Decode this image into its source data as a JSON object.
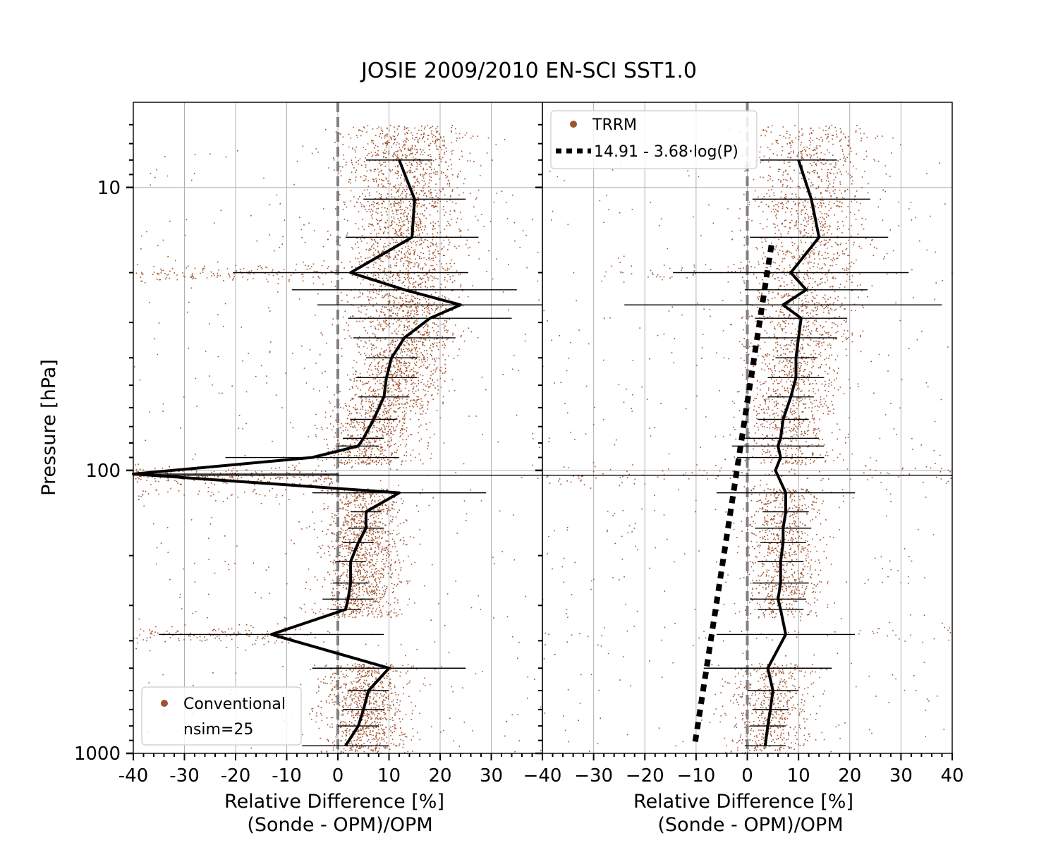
{
  "figure": {
    "title": "JOSIE 2009/2010 EN-SCI SST1.0",
    "ylabel": "Pressure [hPa]"
  },
  "colors": {
    "scatter": "#a0522d",
    "mean_line": "#000000",
    "zero_line": "#808080",
    "grid": "#b0b0b0"
  },
  "chart_data": [
    {
      "type": "scatter",
      "panel": "left",
      "xlabel": "Relative Difference [%]",
      "xlabel2": "(Sonde - OPM)/OPM",
      "xlim": [
        -40,
        40
      ],
      "ylim": [
        1000,
        5
      ],
      "yscale": "log",
      "x_ticks": [
        -40,
        -30,
        -20,
        -10,
        0,
        10,
        20,
        30
      ],
      "x_tick_labels": [
        "-40",
        "-30",
        "-20",
        "-10",
        "0",
        "10",
        "20",
        "30"
      ],
      "y_ticks": [
        10,
        100,
        1000
      ],
      "y_tick_labels": [
        "10",
        "100",
        "1000"
      ],
      "grid": true,
      "legend": {
        "placement": "lower-left",
        "entries": [
          {
            "label": "Conventional",
            "marker": "dot"
          },
          {
            "label": "nsim=25",
            "marker": "none"
          }
        ]
      },
      "series": [
        {
          "name": "Conventional",
          "kind": "scatter-cloud"
        },
        {
          "kind": "mean-profile",
          "points": [
            {
              "p": 8,
              "x": 12,
              "err": 6.5
            },
            {
              "p": 11,
              "x": 15,
              "err": 10
            },
            {
              "p": 15,
              "x": 14.5,
              "err": 13
            },
            {
              "p": 20,
              "x": 2.5,
              "err": 23
            },
            {
              "p": 23,
              "x": 13,
              "err": 22
            },
            {
              "p": 26,
              "x": 24,
              "err": 28
            },
            {
              "p": 29,
              "x": 18,
              "err": 16
            },
            {
              "p": 34,
              "x": 13,
              "err": 10
            },
            {
              "p": 40,
              "x": 10.5,
              "err": 5
            },
            {
              "p": 47,
              "x": 9.5,
              "err": 6
            },
            {
              "p": 55,
              "x": 9,
              "err": 5
            },
            {
              "p": 66,
              "x": 7,
              "err": 4.5
            },
            {
              "p": 77,
              "x": 5,
              "err": 4
            },
            {
              "p": 82,
              "x": 4,
              "err": 4
            },
            {
              "p": 90,
              "x": -5,
              "err": 17
            },
            {
              "p": 103,
              "x": -40,
              "err": 40
            },
            {
              "p": 120,
              "x": 12,
              "err": 17
            },
            {
              "p": 140,
              "x": 5.5,
              "err": 3
            },
            {
              "p": 160,
              "x": 5.5,
              "err": 3.5
            },
            {
              "p": 180,
              "x": 4,
              "err": 3
            },
            {
              "p": 210,
              "x": 2.5,
              "err": 3
            },
            {
              "p": 250,
              "x": 2.5,
              "err": 3.5
            },
            {
              "p": 285,
              "x": 2,
              "err": 5
            },
            {
              "p": 310,
              "x": 1.5,
              "err": 3
            },
            {
              "p": 380,
              "x": -13,
              "err": 22
            },
            {
              "p": 500,
              "x": 10,
              "err": 15
            },
            {
              "p": 600,
              "x": 6,
              "err": 4
            },
            {
              "p": 700,
              "x": 5,
              "err": 4
            },
            {
              "p": 800,
              "x": 4,
              "err": 4
            },
            {
              "p": 940,
              "x": 1.5,
              "err": 8.5
            }
          ]
        }
      ],
      "outlier_bar": {
        "p": 104
      }
    },
    {
      "type": "scatter",
      "panel": "right",
      "xlabel": "Relative Difference [%]",
      "xlabel2": "(Sonde - OPM)/OPM",
      "xlim": [
        -40,
        40
      ],
      "ylim": [
        1000,
        5
      ],
      "yscale": "log",
      "x_ticks": [
        -40,
        -30,
        -20,
        -10,
        0,
        10,
        20,
        30,
        40
      ],
      "x_tick_labels": [
        "−40",
        "−30",
        "−20",
        "−10",
        "0",
        "10",
        "20",
        "30",
        "40"
      ],
      "grid": true,
      "legend": {
        "placement": "top-left",
        "entries": [
          {
            "label": "TRRM",
            "marker": "dot"
          },
          {
            "label": "14.91 - 3.68·log(P)",
            "marker": "dashed"
          }
        ]
      },
      "series": [
        {
          "name": "TRRM",
          "kind": "scatter-cloud"
        },
        {
          "kind": "mean-profile",
          "points": [
            {
              "p": 8,
              "x": 10,
              "err": 7.5
            },
            {
              "p": 11,
              "x": 12.5,
              "err": 11.5
            },
            {
              "p": 15,
              "x": 14,
              "err": 13.5
            },
            {
              "p": 20,
              "x": 8.5,
              "err": 23
            },
            {
              "p": 23,
              "x": 11.5,
              "err": 12
            },
            {
              "p": 26,
              "x": 7,
              "err": 31
            },
            {
              "p": 29,
              "x": 10.5,
              "err": 9
            },
            {
              "p": 34,
              "x": 10,
              "err": 7.5
            },
            {
              "p": 40,
              "x": 9.5,
              "err": 4
            },
            {
              "p": 47,
              "x": 9.5,
              "err": 5.5
            },
            {
              "p": 55,
              "x": 8.5,
              "err": 4.5
            },
            {
              "p": 66,
              "x": 7,
              "err": 5
            },
            {
              "p": 77,
              "x": 6.5,
              "err": 7.5
            },
            {
              "p": 82,
              "x": 6,
              "err": 9
            },
            {
              "p": 90,
              "x": 6.5,
              "err": 8.5
            },
            {
              "p": 100,
              "x": 5.5,
              "err": 0
            },
            {
              "p": 120,
              "x": 7.5,
              "err": 13.5
            },
            {
              "p": 140,
              "x": 7.5,
              "err": 4.5
            },
            {
              "p": 160,
              "x": 7,
              "err": 5.5
            },
            {
              "p": 180,
              "x": 7,
              "err": 4.5
            },
            {
              "p": 210,
              "x": 6.5,
              "err": 4.5
            },
            {
              "p": 250,
              "x": 6.5,
              "err": 5.5
            },
            {
              "p": 285,
              "x": 6,
              "err": 5.5
            },
            {
              "p": 310,
              "x": 6.5,
              "err": 4.5
            },
            {
              "p": 380,
              "x": 7.5,
              "err": 13.5
            },
            {
              "p": 500,
              "x": 4,
              "err": 12.5
            },
            {
              "p": 600,
              "x": 5,
              "err": 5
            },
            {
              "p": 700,
              "x": 4.5,
              "err": 3.5
            },
            {
              "p": 800,
              "x": 4,
              "err": 3.5
            },
            {
              "p": 940,
              "x": 3.5,
              "err": 4
            }
          ]
        },
        {
          "kind": "fit-line",
          "name": "14.91 - 3.68·log(P)",
          "a": 14.91,
          "b": 3.68,
          "p_range": [
            16,
            940
          ]
        }
      ],
      "outlier_bar": {
        "p": 104
      }
    }
  ]
}
